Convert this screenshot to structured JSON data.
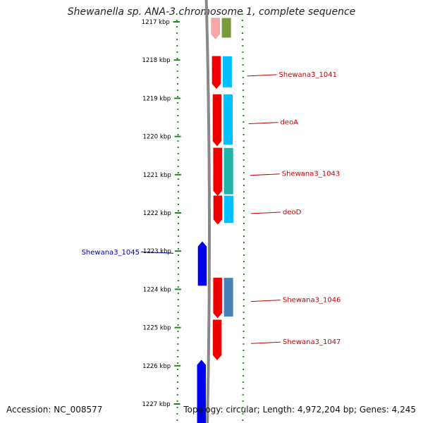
{
  "title": "Shewanella sp. ANA-3 chromosome 1, complete sequence",
  "footer": {
    "accession": "Accession: NC_008577",
    "topology": "Topology: circular; Length: 4,972,204 bp; Genes: 4,245"
  },
  "colors": {
    "forward_cds": "#ee0000",
    "reverse_cds": "#0000ee",
    "backbone": "#888888",
    "ruler_ticks": "#1a8a1a",
    "forward_label": "#cc0000",
    "reverse_label": "#0000aa",
    "kbp_label": "#000000"
  },
  "ruler": {
    "unit": "kbp",
    "labels": [
      "1217 kbp",
      "1218 kbp",
      "1219 kbp",
      "1220 kbp",
      "1221 kbp",
      "1222 kbp",
      "1223 kbp",
      "1224 kbp",
      "1225 kbp",
      "1226 kbp",
      "1227 kbp"
    ]
  },
  "features": [
    {
      "strand": "+",
      "start_kbp": 1216.9,
      "end_kbp": 1217.45,
      "label": "",
      "cog_color": "#6b8e23",
      "faded": true
    },
    {
      "strand": "+",
      "start_kbp": 1217.9,
      "end_kbp": 1218.75,
      "label": "Shewana3_1041",
      "cog_color": "#00bfff",
      "faded": false
    },
    {
      "strand": "+",
      "start_kbp": 1218.9,
      "end_kbp": 1220.25,
      "label": "deoA",
      "cog_color": "#00bfff",
      "faded": false
    },
    {
      "strand": "+",
      "start_kbp": 1220.3,
      "end_kbp": 1221.55,
      "label": "Shewana3_1043",
      "cog_color": "#20b2aa",
      "faded": false
    },
    {
      "strand": "+",
      "start_kbp": 1221.55,
      "end_kbp": 1222.3,
      "label": "deoD",
      "cog_color": "#00bfff",
      "faded": false
    },
    {
      "strand": "-",
      "start_kbp": 1222.75,
      "end_kbp": 1223.9,
      "label": "Shewana3_1045",
      "cog_color": "",
      "faded": false
    },
    {
      "strand": "+",
      "start_kbp": 1223.7,
      "end_kbp": 1224.75,
      "label": "Shewana3_1046",
      "cog_color": "#4682b4",
      "faded": false
    },
    {
      "strand": "+",
      "start_kbp": 1224.8,
      "end_kbp": 1225.85,
      "label": "Shewana3_1047",
      "cog_color": "",
      "faded": false
    },
    {
      "strand": "-",
      "start_kbp": 1225.85,
      "end_kbp": 1227.5,
      "label": "",
      "cog_color": "",
      "faded": false
    }
  ]
}
